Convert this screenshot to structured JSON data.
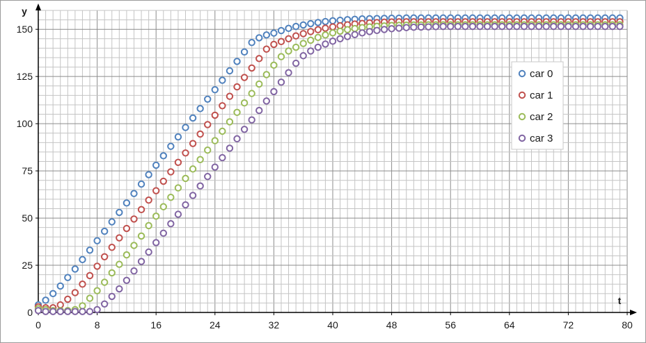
{
  "chart_data": {
    "type": "scatter",
    "title": "",
    "xlabel": "t",
    "ylabel": "y",
    "xlim": [
      0,
      80
    ],
    "ylim": [
      0,
      160
    ],
    "x_ticks": [
      0,
      8,
      16,
      24,
      32,
      40,
      48,
      56,
      64,
      72,
      80
    ],
    "y_ticks": [
      0,
      25,
      50,
      75,
      100,
      125,
      150
    ],
    "x_minor_step": 1,
    "y_minor_step": 5,
    "grid": true,
    "legend_position": "right",
    "colors": [
      "#4f81bd",
      "#c0504d",
      "#9bbb59",
      "#8064a2"
    ],
    "x": [
      0,
      1,
      2,
      3,
      4,
      5,
      6,
      7,
      8,
      9,
      10,
      11,
      12,
      13,
      14,
      15,
      16,
      17,
      18,
      19,
      20,
      21,
      22,
      23,
      24,
      25,
      26,
      27,
      28,
      29,
      30,
      31,
      32,
      33,
      34,
      35,
      36,
      37,
      38,
      39,
      40,
      41,
      42,
      43,
      44,
      45,
      46,
      47,
      48,
      49,
      50,
      51,
      52,
      53,
      54,
      55,
      56,
      57,
      58,
      59,
      60,
      61,
      62,
      63,
      64,
      65,
      66,
      67,
      68,
      69,
      70,
      71,
      72,
      73,
      74,
      75,
      76,
      77,
      78,
      79
    ],
    "series": [
      {
        "name": "car 0",
        "values": [
          4,
          6.5,
          10,
          14,
          18.5,
          23,
          28,
          33,
          38,
          43,
          48,
          53,
          58,
          63,
          68,
          73,
          78,
          83,
          88,
          93,
          98,
          103,
          108,
          113,
          118,
          123,
          128,
          133,
          138,
          143,
          145.5,
          147,
          148,
          149.3,
          150.5,
          151.5,
          152.3,
          153,
          153.6,
          154.1,
          154.5,
          154.8,
          155.1,
          155.3,
          155.5,
          155.6,
          155.7,
          155.8,
          155.9,
          155.9,
          156,
          156,
          156,
          156,
          156,
          156,
          156,
          156,
          156,
          156,
          156,
          156,
          156,
          156,
          156,
          156,
          156,
          156,
          156,
          156,
          156,
          156,
          156,
          156,
          156,
          156,
          156,
          156,
          156,
          156
        ]
      },
      {
        "name": "car 1",
        "values": [
          3,
          2.5,
          2.5,
          4,
          7,
          10.5,
          15,
          19.5,
          24.5,
          29.5,
          34.5,
          39.5,
          44.5,
          49.5,
          54.5,
          59.5,
          64.5,
          69.5,
          74.5,
          79.5,
          84.5,
          89.5,
          94.5,
          99.5,
          104.5,
          109.5,
          114.5,
          119.5,
          124.5,
          129.5,
          134.5,
          139.5,
          142,
          143.5,
          145,
          146.5,
          147.7,
          148.8,
          149.8,
          150.6,
          151.3,
          151.9,
          152.4,
          152.8,
          153.1,
          153.4,
          153.6,
          153.8,
          153.9,
          154,
          154,
          154,
          154,
          154,
          154,
          154,
          154,
          154,
          154,
          154,
          154,
          154,
          154,
          154,
          154,
          154,
          154,
          154,
          154,
          154,
          154,
          154,
          154,
          154,
          154,
          154,
          154,
          154,
          154,
          154
        ]
      },
      {
        "name": "car 2",
        "values": [
          2,
          1.5,
          1,
          1,
          1,
          1.5,
          3.5,
          7.5,
          11.5,
          16,
          21,
          25.5,
          30.5,
          35.5,
          40.5,
          46,
          51,
          56,
          61,
          66,
          71,
          76,
          81,
          86,
          91,
          96,
          101,
          106,
          111,
          116,
          121,
          126,
          131,
          135.5,
          138.5,
          140.5,
          142.5,
          144.2,
          145.7,
          147,
          148.1,
          149,
          149.8,
          150.4,
          150.9,
          151.3,
          151.6,
          151.8,
          152,
          152.1,
          152.2,
          152.3,
          152.3,
          152.4,
          152.4,
          152.4,
          152.4,
          152.4,
          152.4,
          152.4,
          152.4,
          152.4,
          152.4,
          152.4,
          152.4,
          152.4,
          152.4,
          152.4,
          152.4,
          152.4,
          152.4,
          152.4,
          152.4,
          152.4,
          152.4,
          152.4,
          152.4,
          152.4,
          152.4,
          152.4
        ]
      },
      {
        "name": "car 3",
        "values": [
          1,
          0.5,
          0.5,
          0.5,
          0.5,
          0.5,
          0.5,
          0.5,
          1.5,
          4.5,
          8.5,
          12.5,
          17,
          22,
          27,
          32,
          37,
          42,
          47,
          52,
          57,
          62,
          67,
          72,
          77,
          82,
          87,
          92,
          97,
          102,
          107,
          112,
          117,
          122,
          127,
          132,
          136,
          138.5,
          140.5,
          142.2,
          143.7,
          145,
          146.2,
          147.2,
          148.1,
          148.8,
          149.4,
          149.9,
          150.3,
          150.6,
          150.9,
          151.1,
          151.2,
          151.3,
          151.4,
          151.5,
          151.5,
          151.5,
          151.5,
          151.5,
          151.5,
          151.5,
          151.5,
          151.5,
          151.5,
          151.5,
          151.5,
          151.5,
          151.5,
          151.5,
          151.5,
          151.5,
          151.5,
          151.5,
          151.5,
          151.5,
          151.5,
          151.5,
          151.5,
          151.5
        ]
      }
    ]
  }
}
